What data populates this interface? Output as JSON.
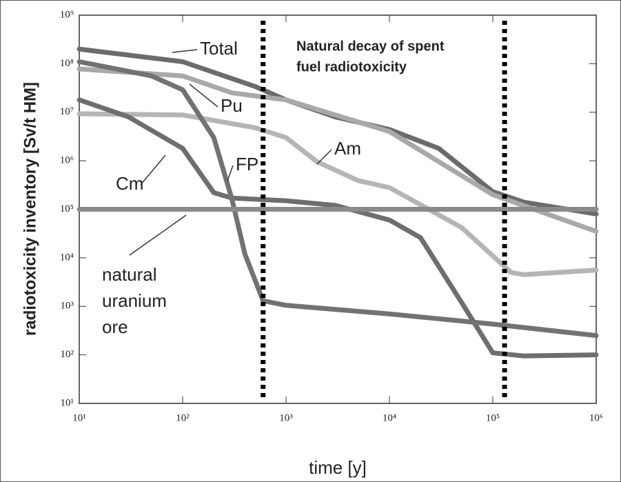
{
  "chart_data": {
    "type": "line",
    "annotation": [
      "Natural decay of spent",
      "fuel radiotoxicity"
    ],
    "xlabel": "time [y]",
    "ylabel": "radiotoxicity inventory [Sv/t HM]",
    "xscale": "log",
    "yscale": "log",
    "xlim": [
      10,
      1000000
    ],
    "ylim": [
      10,
      1000000000
    ],
    "xticks": [
      {
        "value": 10,
        "label": "10¹"
      },
      {
        "value": 100,
        "label": "10²"
      },
      {
        "value": 1000,
        "label": "10³"
      },
      {
        "value": 10000,
        "label": "10⁴"
      },
      {
        "value": 100000,
        "label": "10⁵"
      },
      {
        "value": 1000000,
        "label": "10⁶"
      }
    ],
    "yticks": [
      {
        "value": 10,
        "label": "10¹"
      },
      {
        "value": 100,
        "label": "10²"
      },
      {
        "value": 1000,
        "label": "10³"
      },
      {
        "value": 10000,
        "label": "10⁴"
      },
      {
        "value": 100000,
        "label": "10⁵"
      },
      {
        "value": 1000000,
        "label": "10⁶"
      },
      {
        "value": 10000000,
        "label": "10⁷"
      },
      {
        "value": 100000000,
        "label": "10⁸"
      },
      {
        "value": 1000000000,
        "label": "10⁹"
      }
    ],
    "vlines": [
      600,
      130000
    ],
    "series": [
      {
        "name": "Total",
        "color": "#6b6b6b",
        "x": [
          10,
          100,
          500,
          1000,
          3000,
          10000,
          30000,
          100000,
          200000,
          1000000
        ],
        "values": [
          200000000,
          110000000,
          34000000,
          18000000,
          8000000,
          4400000,
          1800000,
          230000,
          140000,
          80000
        ]
      },
      {
        "name": "Pu",
        "color": "#a9a9a9",
        "x": [
          10,
          100,
          300,
          1000,
          10000,
          100000,
          1000000
        ],
        "values": [
          78000000,
          56000000,
          25000000,
          18000000,
          4000000,
          200000,
          35000
        ]
      },
      {
        "name": "Am",
        "color": "#b5b5b5",
        "x": [
          10,
          100,
          500,
          1000,
          2000,
          5000,
          10000,
          50000,
          150000,
          200000,
          1000000
        ],
        "values": [
          9300000,
          8800000,
          4800000,
          3000000,
          950000,
          390000,
          280000,
          42000,
          5000,
          4500,
          5600
        ]
      },
      {
        "name": "Cm",
        "color": "#6e6e6e",
        "x": [
          10,
          30,
          100,
          200,
          300,
          1000,
          3000,
          10000,
          20000,
          50000,
          100000,
          200000,
          1000000
        ],
        "values": [
          18000000,
          8000000,
          1800000,
          220000,
          170000,
          150000,
          120000,
          60000,
          26000,
          1200,
          110,
          95,
          100
        ]
      },
      {
        "name": "FP",
        "color": "#727272",
        "x": [
          10,
          50,
          100,
          200,
          300,
          400,
          600,
          1000,
          10000,
          100000,
          1000000
        ],
        "values": [
          110000000,
          56000000,
          29000000,
          3000000,
          160000,
          12000,
          1300,
          1050,
          700,
          430,
          250
        ]
      },
      {
        "name": "natural uranium ore",
        "color": "#8a8a8a",
        "x": [
          10,
          1000000
        ],
        "values": [
          100000,
          100000
        ]
      }
    ]
  }
}
